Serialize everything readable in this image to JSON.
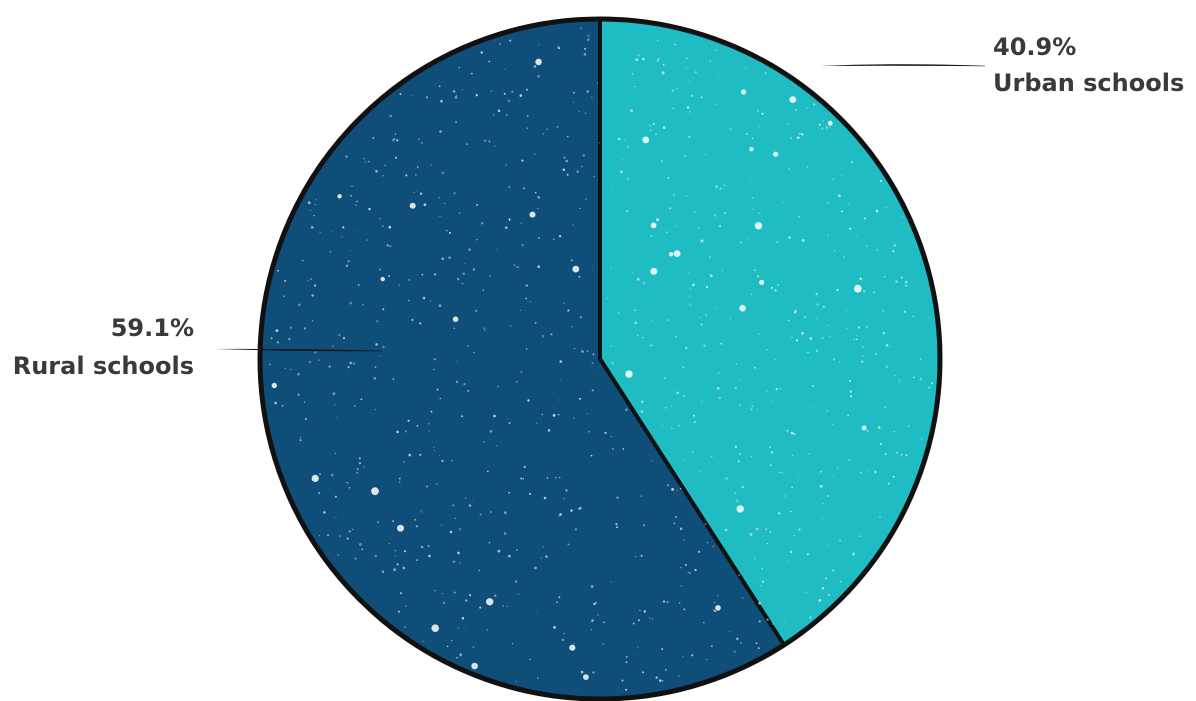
{
  "chart_data": {
    "type": "pie",
    "slices": [
      {
        "name": "Urban schools",
        "value": 40.9,
        "value_label": "40.9%",
        "color": "#1fbcc4"
      },
      {
        "name": "Rural schools",
        "value": 59.1,
        "value_label": "59.1%",
        "color": "#0e4e79"
      }
    ],
    "start_angle_deg": 0,
    "direction": "clockwise",
    "outline_color": "#111111",
    "label_color": "#3a3a3a",
    "speckle_texture": true
  }
}
